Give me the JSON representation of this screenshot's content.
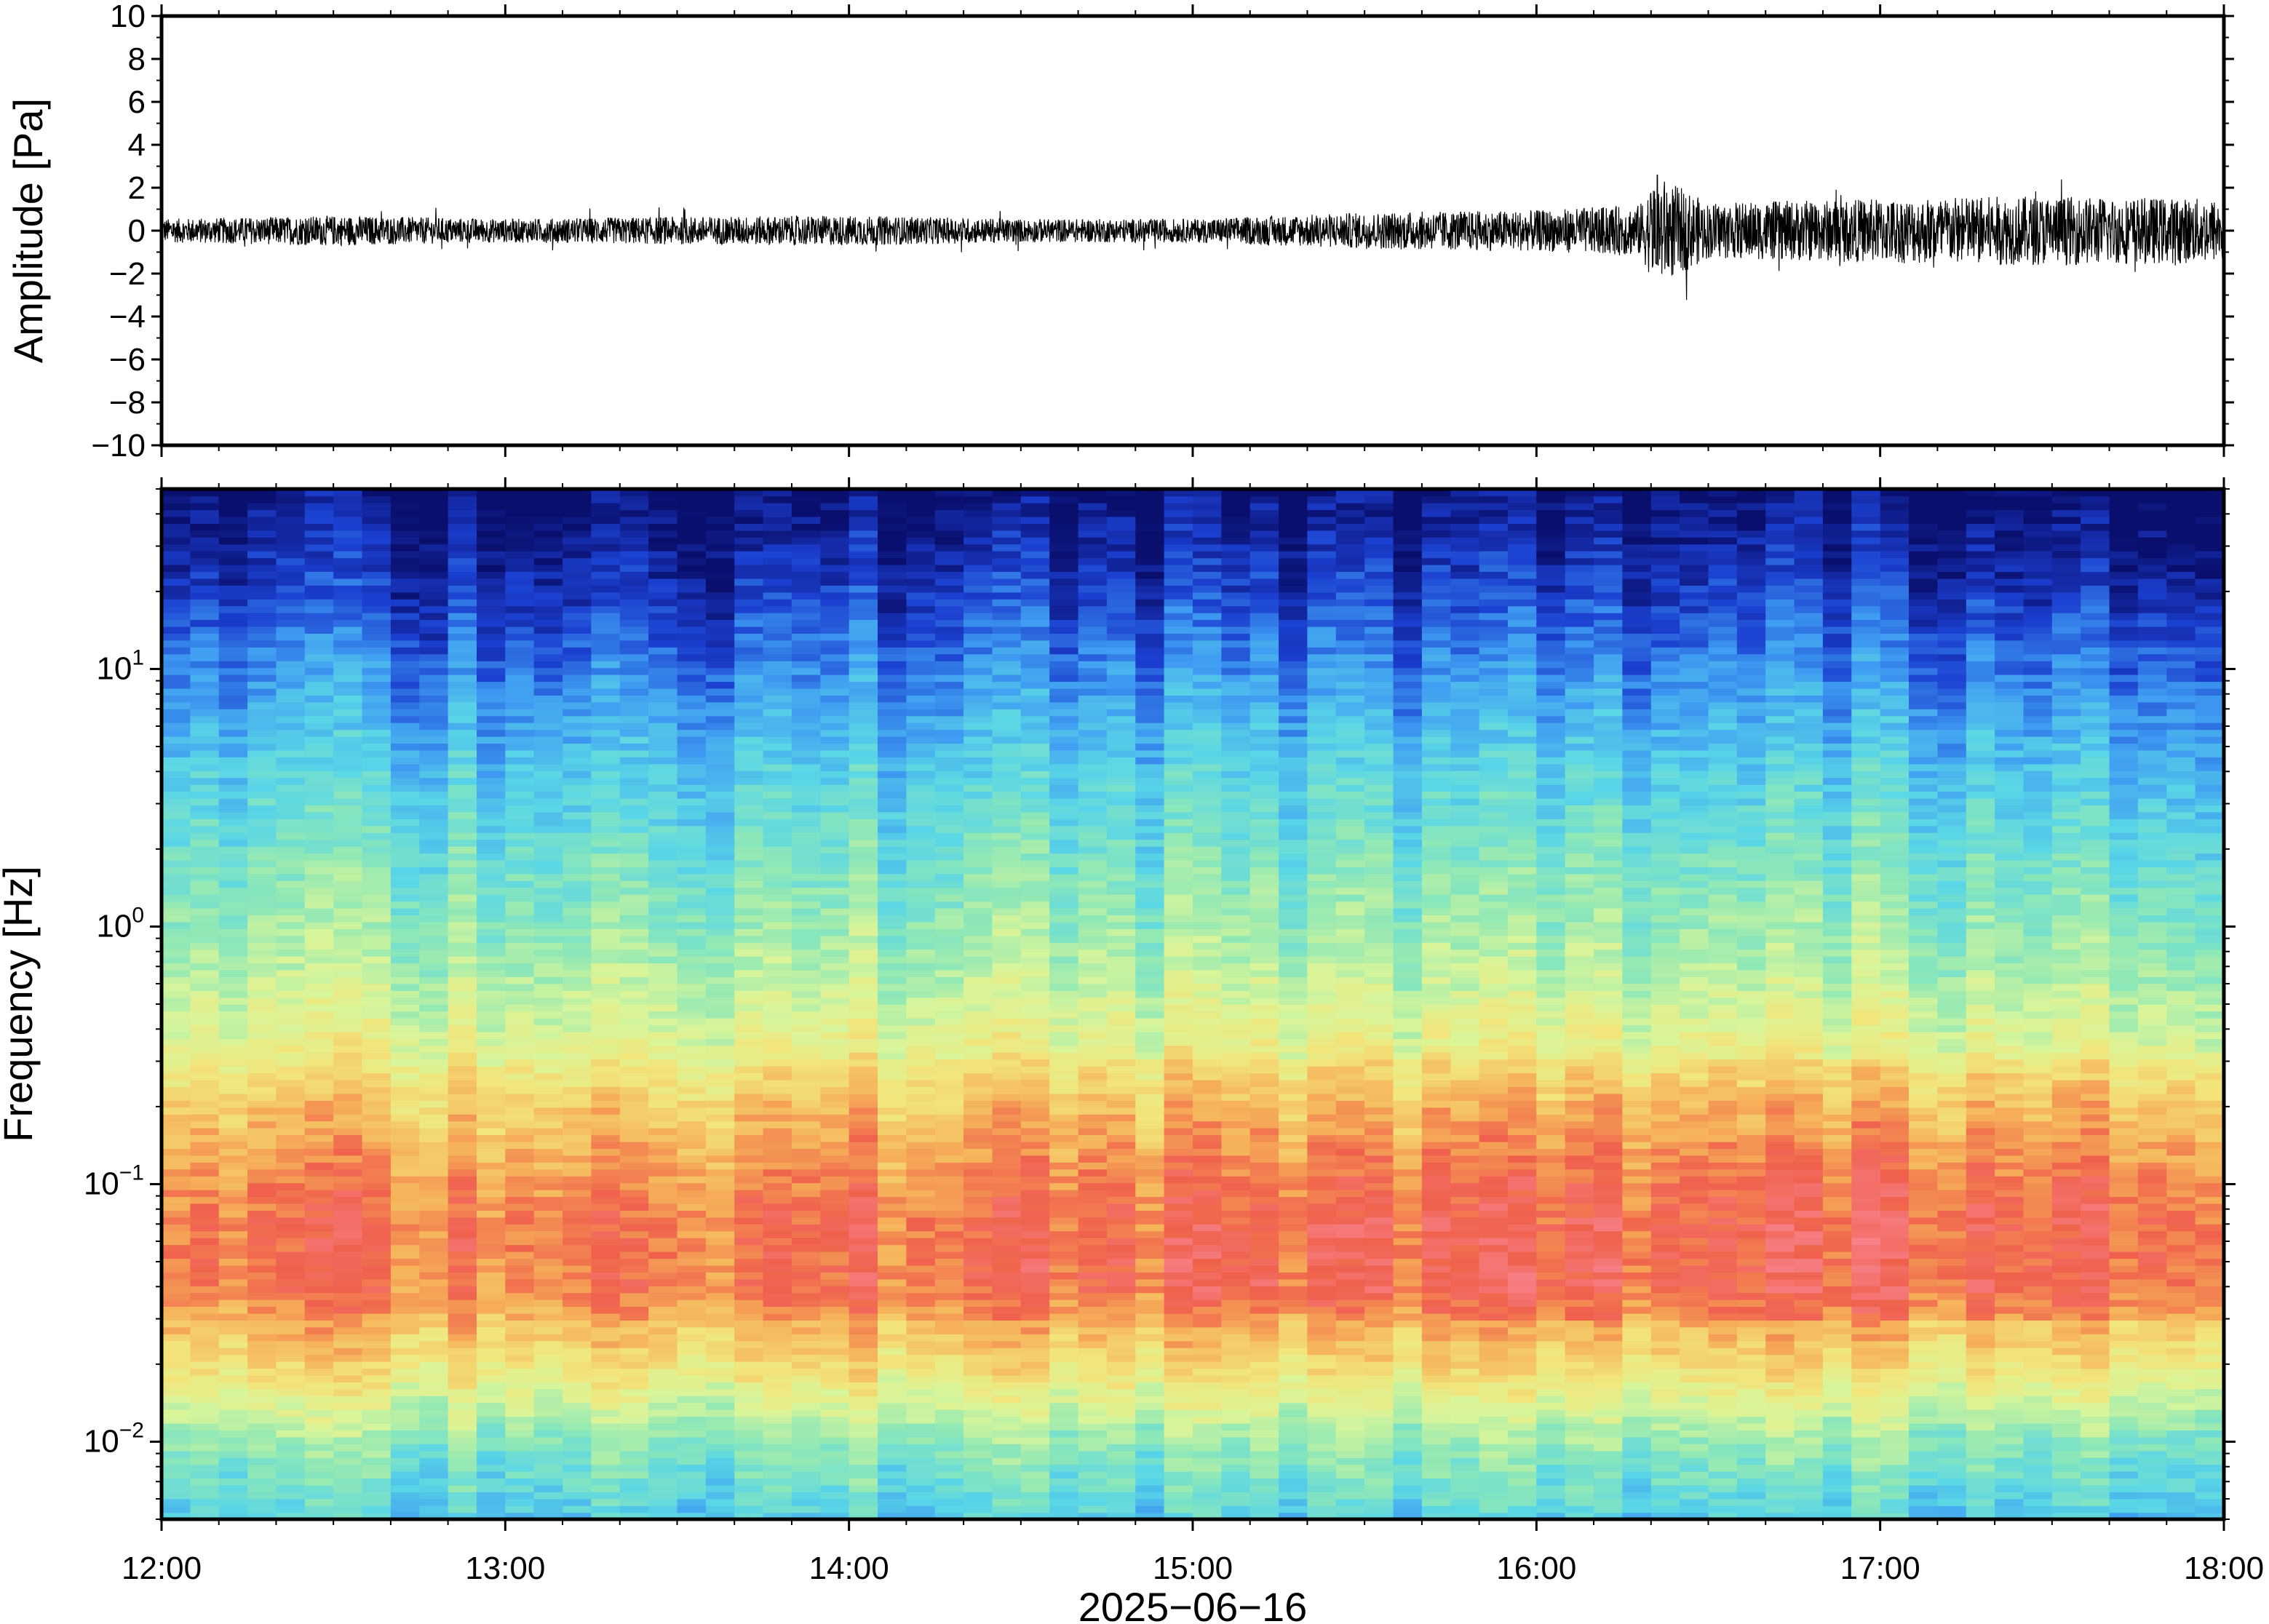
{
  "chart_data": [
    {
      "type": "line",
      "panel": "waveform",
      "ylabel": "Amplitude [Pa]",
      "ylim": [
        -10,
        10
      ],
      "yticks": [
        10,
        8,
        6,
        4,
        2,
        0,
        -2,
        -4,
        -6,
        -8,
        -10
      ],
      "ytick_labels": [
        "10",
        "8",
        "6",
        "4",
        "2",
        "0",
        "−2",
        "−4",
        "−6",
        "−8",
        "−10"
      ],
      "xlim": [
        "12:00",
        "18:00"
      ],
      "series_color": "#000000",
      "envelope_hours": [
        12.0,
        12.5,
        13.0,
        13.5,
        14.0,
        14.5,
        15.0,
        15.5,
        15.7,
        16.0,
        16.3,
        16.35,
        16.5,
        17.0,
        17.3,
        17.5,
        18.0
      ],
      "envelope_pa": [
        0.55,
        0.7,
        0.55,
        0.65,
        0.7,
        0.55,
        0.55,
        0.85,
        0.9,
        0.95,
        1.2,
        2.6,
        1.3,
        1.5,
        1.6,
        1.6,
        1.5
      ]
    },
    {
      "type": "heatmap",
      "panel": "spectrogram",
      "ylabel": "Frequency [Hz]",
      "xlabel": "2025−06−16",
      "yscale": "log",
      "ylim": [
        0.005,
        50
      ],
      "yticks": [
        10,
        1,
        0.1,
        0.01
      ],
      "ytick_labels": [
        {
          "base": "10",
          "exp": "1"
        },
        {
          "base": "10",
          "exp": "0"
        },
        {
          "base": "10",
          "exp": "−1"
        },
        {
          "base": "10",
          "exp": "−2"
        }
      ],
      "xticks": [
        "12:00",
        "13:00",
        "14:00",
        "15:00",
        "16:00",
        "17:00",
        "18:00"
      ],
      "colormap": [
        "#0a0f6e",
        "#1b3fd0",
        "#3f9df2",
        "#5ad6e6",
        "#8fe8b6",
        "#d8f59a",
        "#f2e57a",
        "#f6b259",
        "#f0604c",
        "#f7838c"
      ],
      "freq_power_profile": {
        "freq_hz": [
          0.005,
          0.01,
          0.02,
          0.04,
          0.07,
          0.1,
          0.2,
          0.35,
          0.7,
          1.5,
          4,
          10,
          20,
          50
        ],
        "level": [
          0.32,
          0.45,
          0.68,
          0.85,
          0.85,
          0.82,
          0.72,
          0.6,
          0.5,
          0.42,
          0.32,
          0.2,
          0.1,
          0.0
        ]
      }
    }
  ]
}
